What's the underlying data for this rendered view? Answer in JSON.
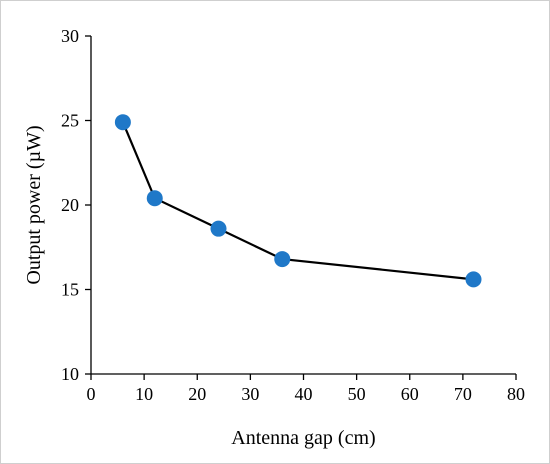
{
  "chart_data": {
    "type": "line",
    "xlabel": "Antenna gap (cm)",
    "ylabel": "Output power (µW)",
    "xlim": [
      0,
      80
    ],
    "ylim": [
      10,
      30
    ],
    "xticks": [
      "0",
      "10",
      "20",
      "30",
      "40",
      "50",
      "60",
      "70",
      "80"
    ],
    "yticks": [
      "10",
      "15",
      "20",
      "25",
      "30"
    ],
    "grid": false,
    "marker_color": "#1f78c8",
    "line_color": "#000000",
    "series": [
      {
        "x": [
          6,
          12,
          24,
          36,
          72
        ],
        "y": [
          24.9,
          20.4,
          18.6,
          16.8,
          15.6
        ]
      }
    ]
  }
}
